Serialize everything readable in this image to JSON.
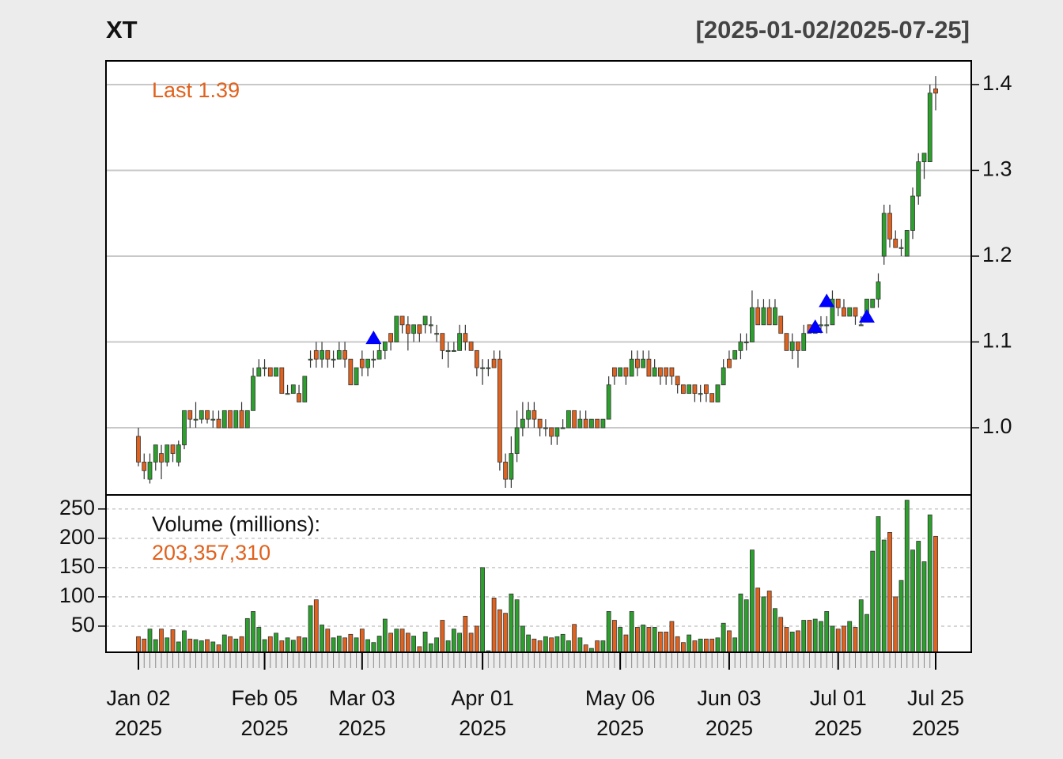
{
  "chart_data": {
    "type": "candlestick",
    "title": "XT",
    "subtitle": "[2025-01-02/2025-07-25]",
    "price_label": "Last 1.39",
    "volume_label": "Volume (millions):",
    "volume_value_label": "203,357,310",
    "up_color": "#2ca02c",
    "down_color": "#e0621e",
    "marker_color": "#0000ff",
    "grid": true,
    "categories": [
      "2025-01-02",
      "2025-01-03",
      "2025-01-06",
      "2025-01-07",
      "2025-01-08",
      "2025-01-10",
      "2025-01-13",
      "2025-01-14",
      "2025-01-15",
      "2025-01-16",
      "2025-01-17",
      "2025-01-21",
      "2025-01-22",
      "2025-01-23",
      "2025-01-24",
      "2025-01-27",
      "2025-01-28",
      "2025-01-29",
      "2025-01-30",
      "2025-01-31",
      "2025-02-03",
      "2025-02-04",
      "2025-02-05",
      "2025-02-06",
      "2025-02-07",
      "2025-02-10",
      "2025-02-11",
      "2025-02-12",
      "2025-02-13",
      "2025-02-14",
      "2025-02-18",
      "2025-02-19",
      "2025-02-20",
      "2025-02-21",
      "2025-02-24",
      "2025-02-25",
      "2025-02-26",
      "2025-02-27",
      "2025-02-28",
      "2025-03-03",
      "2025-03-04",
      "2025-03-05",
      "2025-03-06",
      "2025-03-07",
      "2025-03-10",
      "2025-03-11",
      "2025-03-12",
      "2025-03-13",
      "2025-03-14",
      "2025-03-17",
      "2025-03-18",
      "2025-03-19",
      "2025-03-20",
      "2025-03-21",
      "2025-03-24",
      "2025-03-25",
      "2025-03-26",
      "2025-03-27",
      "2025-03-28",
      "2025-03-31",
      "2025-04-01",
      "2025-04-02",
      "2025-04-03",
      "2025-04-04",
      "2025-04-07",
      "2025-04-08",
      "2025-04-09",
      "2025-04-10",
      "2025-04-11",
      "2025-04-14",
      "2025-04-15",
      "2025-04-16",
      "2025-04-17",
      "2025-04-21",
      "2025-04-22",
      "2025-04-23",
      "2025-04-24",
      "2025-04-25",
      "2025-04-28",
      "2025-04-29",
      "2025-04-30",
      "2025-05-01",
      "2025-05-02",
      "2025-05-05",
      "2025-05-06",
      "2025-05-07",
      "2025-05-08",
      "2025-05-09",
      "2025-05-12",
      "2025-05-13",
      "2025-05-14",
      "2025-05-15",
      "2025-05-16",
      "2025-05-19",
      "2025-05-20",
      "2025-05-21",
      "2025-05-22",
      "2025-05-23",
      "2025-05-27",
      "2025-05-28",
      "2025-05-29",
      "2025-05-30",
      "2025-06-02",
      "2025-06-03",
      "2025-06-04",
      "2025-06-05",
      "2025-06-06",
      "2025-06-09",
      "2025-06-10",
      "2025-06-11",
      "2025-06-12",
      "2025-06-13",
      "2025-06-16",
      "2025-06-17",
      "2025-06-18",
      "2025-06-20",
      "2025-06-23",
      "2025-06-24",
      "2025-06-25",
      "2025-06-26",
      "2025-06-27",
      "2025-06-30",
      "2025-07-01",
      "2025-07-02",
      "2025-07-03",
      "2025-07-07",
      "2025-07-08",
      "2025-07-09",
      "2025-07-10",
      "2025-07-11",
      "2025-07-14",
      "2025-07-15",
      "2025-07-16",
      "2025-07-17",
      "2025-07-18",
      "2025-07-21",
      "2025-07-22",
      "2025-07-23",
      "2025-07-24",
      "2025-07-25"
    ],
    "open": [
      0.99,
      0.96,
      0.94,
      0.96,
      0.97,
      0.96,
      0.98,
      0.96,
      0.98,
      1.02,
      1.01,
      1.01,
      1.02,
      1.01,
      1.01,
      1.0,
      1.02,
      1.0,
      1.02,
      1.0,
      1.02,
      1.06,
      1.07,
      1.07,
      1.06,
      1.07,
      1.04,
      1.04,
      1.04,
      1.03,
      1.08,
      1.09,
      1.08,
      1.09,
      1.08,
      1.08,
      1.09,
      1.08,
      1.05,
      1.08,
      1.07,
      1.08,
      1.08,
      1.09,
      1.11,
      1.1,
      1.13,
      1.12,
      1.11,
      1.12,
      1.12,
      1.12,
      1.11,
      1.11,
      1.09,
      1.09,
      1.09,
      1.11,
      1.1,
      1.09,
      1.07,
      1.07,
      1.08,
      1.08,
      0.96,
      0.94,
      0.97,
      1.0,
      1.01,
      1.02,
      1.01,
      1.0,
      1.0,
      0.99,
      1.0,
      1.0,
      1.02,
      1.0,
      1.01,
      1.0,
      1.01,
      1.0,
      1.01,
      1.07,
      1.06,
      1.07,
      1.06,
      1.08,
      1.07,
      1.08,
      1.06,
      1.07,
      1.07,
      1.07,
      1.06,
      1.05,
      1.04,
      1.05,
      1.04,
      1.05,
      1.04,
      1.03,
      1.05,
      1.08,
      1.08,
      1.09,
      1.1,
      1.1,
      1.14,
      1.12,
      1.14,
      1.12,
      1.13,
      1.11,
      1.09,
      1.1,
      1.09,
      1.12,
      1.11,
      1.12,
      1.12,
      1.12,
      1.15,
      1.14,
      1.13,
      1.14,
      1.12,
      1.13,
      1.14,
      1.15,
      1.2,
      1.25,
      1.22,
      1.21,
      1.2,
      1.23,
      1.27,
      1.31,
      1.31,
      1.395
    ],
    "high": [
      1.0,
      0.97,
      0.97,
      0.98,
      0.98,
      0.98,
      0.98,
      0.985,
      1.02,
      1.02,
      1.03,
      1.02,
      1.02,
      1.02,
      1.02,
      1.02,
      1.02,
      1.02,
      1.03,
      1.02,
      1.07,
      1.08,
      1.08,
      1.07,
      1.07,
      1.07,
      1.05,
      1.05,
      1.05,
      1.06,
      1.09,
      1.1,
      1.1,
      1.09,
      1.09,
      1.1,
      1.1,
      1.08,
      1.07,
      1.09,
      1.08,
      1.09,
      1.1,
      1.1,
      1.11,
      1.13,
      1.13,
      1.13,
      1.12,
      1.12,
      1.13,
      1.13,
      1.12,
      1.11,
      1.1,
      1.1,
      1.12,
      1.12,
      1.1,
      1.09,
      1.08,
      1.08,
      1.09,
      1.09,
      0.97,
      0.99,
      1.02,
      1.03,
      1.03,
      1.03,
      1.01,
      1.01,
      1.0,
      1.0,
      1.01,
      1.02,
      1.02,
      1.02,
      1.02,
      1.01,
      1.01,
      1.01,
      1.06,
      1.07,
      1.07,
      1.07,
      1.09,
      1.09,
      1.09,
      1.09,
      1.08,
      1.07,
      1.07,
      1.07,
      1.06,
      1.05,
      1.05,
      1.05,
      1.05,
      1.05,
      1.04,
      1.05,
      1.08,
      1.09,
      1.09,
      1.11,
      1.11,
      1.16,
      1.15,
      1.15,
      1.15,
      1.15,
      1.13,
      1.11,
      1.11,
      1.1,
      1.12,
      1.12,
      1.12,
      1.13,
      1.13,
      1.16,
      1.15,
      1.15,
      1.14,
      1.14,
      1.13,
      1.15,
      1.15,
      1.18,
      1.26,
      1.26,
      1.23,
      1.22,
      1.23,
      1.28,
      1.32,
      1.32,
      1.4,
      1.41
    ],
    "low": [
      0.955,
      0.94,
      0.935,
      0.95,
      0.94,
      0.955,
      0.96,
      0.955,
      0.975,
      1.0,
      1.0,
      1.005,
      1.005,
      1.0,
      1.0,
      1.0,
      1.0,
      1.0,
      1.0,
      1.0,
      1.02,
      1.06,
      1.06,
      1.06,
      1.06,
      1.04,
      1.04,
      1.04,
      1.03,
      1.03,
      1.07,
      1.07,
      1.07,
      1.07,
      1.07,
      1.08,
      1.07,
      1.05,
      1.05,
      1.06,
      1.06,
      1.07,
      1.08,
      1.08,
      1.09,
      1.1,
      1.11,
      1.09,
      1.1,
      1.1,
      1.11,
      1.11,
      1.1,
      1.08,
      1.07,
      1.09,
      1.09,
      1.09,
      1.09,
      1.06,
      1.05,
      1.06,
      1.07,
      0.95,
      0.93,
      0.93,
      0.96,
      0.99,
      1.0,
      1.0,
      0.99,
      0.99,
      0.98,
      0.98,
      1.0,
      1.0,
      1.0,
      1.0,
      1.0,
      1.0,
      1.0,
      1.0,
      1.01,
      1.05,
      1.06,
      1.05,
      1.06,
      1.06,
      1.07,
      1.06,
      1.06,
      1.05,
      1.05,
      1.05,
      1.04,
      1.04,
      1.04,
      1.03,
      1.03,
      1.03,
      1.03,
      1.03,
      1.05,
      1.07,
      1.08,
      1.08,
      1.09,
      1.1,
      1.12,
      1.12,
      1.12,
      1.12,
      1.11,
      1.09,
      1.08,
      1.07,
      1.09,
      1.11,
      1.11,
      1.11,
      1.11,
      1.12,
      1.13,
      1.13,
      1.13,
      1.12,
      1.12,
      1.13,
      1.14,
      1.14,
      1.19,
      1.21,
      1.21,
      1.2,
      1.2,
      1.22,
      1.26,
      1.29,
      1.31,
      1.37
    ],
    "close": [
      0.96,
      0.95,
      0.96,
      0.98,
      0.96,
      0.98,
      0.97,
      0.98,
      1.02,
      1.01,
      1.01,
      1.02,
      1.01,
      1.01,
      1.0,
      1.02,
      1.0,
      1.02,
      1.0,
      1.02,
      1.06,
      1.07,
      1.07,
      1.06,
      1.07,
      1.04,
      1.04,
      1.05,
      1.03,
      1.06,
      1.08,
      1.08,
      1.09,
      1.08,
      1.08,
      1.09,
      1.08,
      1.05,
      1.07,
      1.07,
      1.08,
      1.08,
      1.09,
      1.1,
      1.1,
      1.13,
      1.12,
      1.11,
      1.12,
      1.11,
      1.13,
      1.12,
      1.11,
      1.09,
      1.09,
      1.09,
      1.11,
      1.1,
      1.09,
      1.07,
      1.07,
      1.07,
      1.07,
      0.96,
      0.94,
      0.97,
      1.0,
      1.01,
      1.02,
      1.01,
      1.0,
      1.0,
      0.99,
      1.0,
      1.0,
      1.02,
      1.0,
      1.01,
      1.0,
      1.01,
      1.0,
      1.01,
      1.05,
      1.06,
      1.07,
      1.06,
      1.08,
      1.07,
      1.08,
      1.06,
      1.07,
      1.06,
      1.06,
      1.06,
      1.05,
      1.04,
      1.05,
      1.04,
      1.04,
      1.04,
      1.03,
      1.05,
      1.07,
      1.07,
      1.09,
      1.1,
      1.1,
      1.14,
      1.12,
      1.14,
      1.12,
      1.14,
      1.11,
      1.09,
      1.1,
      1.09,
      1.11,
      1.11,
      1.12,
      1.12,
      1.12,
      1.15,
      1.14,
      1.13,
      1.14,
      1.13,
      1.12,
      1.15,
      1.15,
      1.17,
      1.25,
      1.22,
      1.21,
      1.21,
      1.23,
      1.27,
      1.31,
      1.32,
      1.39,
      1.39
    ],
    "volume": [
      32,
      28,
      45,
      27,
      45,
      30,
      44,
      23,
      42,
      28,
      27,
      25,
      27,
      23,
      18,
      35,
      32,
      28,
      32,
      63,
      75,
      48,
      27,
      32,
      38,
      25,
      30,
      26,
      32,
      30,
      85,
      95,
      52,
      45,
      30,
      33,
      30,
      36,
      30,
      45,
      27,
      22,
      33,
      62,
      38,
      45,
      45,
      38,
      33,
      15,
      40,
      20,
      30,
      60,
      25,
      45,
      38,
      67,
      38,
      50,
      150,
      8,
      98,
      78,
      72,
      105,
      95,
      50,
      35,
      28,
      25,
      32,
      30,
      32,
      36,
      25,
      53,
      30,
      18,
      12,
      25,
      25,
      75,
      60,
      48,
      35,
      75,
      48,
      52,
      48,
      48,
      40,
      40,
      58,
      32,
      22,
      35,
      25,
      28,
      28,
      28,
      30,
      55,
      42,
      30,
      105,
      95,
      180,
      115,
      100,
      110,
      80,
      65,
      48,
      40,
      42,
      60,
      60,
      62,
      58,
      75,
      50,
      45,
      50,
      58,
      48,
      95,
      70,
      178,
      237,
      197,
      210,
      100,
      128,
      265,
      180,
      195,
      160,
      240,
      203.35731
    ],
    "markers": {
      "x": [
        "2025-03-05",
        "2025-06-25",
        "2025-06-27",
        "2025-07-09"
      ],
      "values": [
        1.105,
        1.118,
        1.148,
        1.13
      ]
    },
    "ylim": [
      0.9217,
      1.4276
    ],
    "yticks": [
      {
        "value": 1,
        "label": "1.0"
      },
      1.1,
      1.2,
      1.3,
      1.4
    ],
    "y2lim": [
      5.4,
      274
    ],
    "y2ticks": [
      50,
      100,
      150,
      200,
      250
    ],
    "xticks": [
      {
        "value": "2025-01-02",
        "label": [
          "Jan 02",
          "2025"
        ]
      },
      {
        "value": "2025-02-05",
        "label": [
          "Feb 05",
          "2025"
        ]
      },
      {
        "value": "2025-03-03",
        "label": [
          "Mar 03",
          "2025"
        ]
      },
      {
        "value": "2025-04-01",
        "label": [
          "Apr 01",
          "2025"
        ]
      },
      {
        "value": "2025-05-06",
        "label": [
          "May 06",
          "2025"
        ]
      },
      {
        "value": "2025-06-03",
        "label": [
          "Jun 03",
          "2025"
        ]
      },
      {
        "value": "2025-07-01",
        "label": [
          "Jul 01",
          "2025"
        ]
      },
      {
        "value": "2025-07-25",
        "label": [
          "Jul 25",
          "2025"
        ]
      }
    ]
  }
}
